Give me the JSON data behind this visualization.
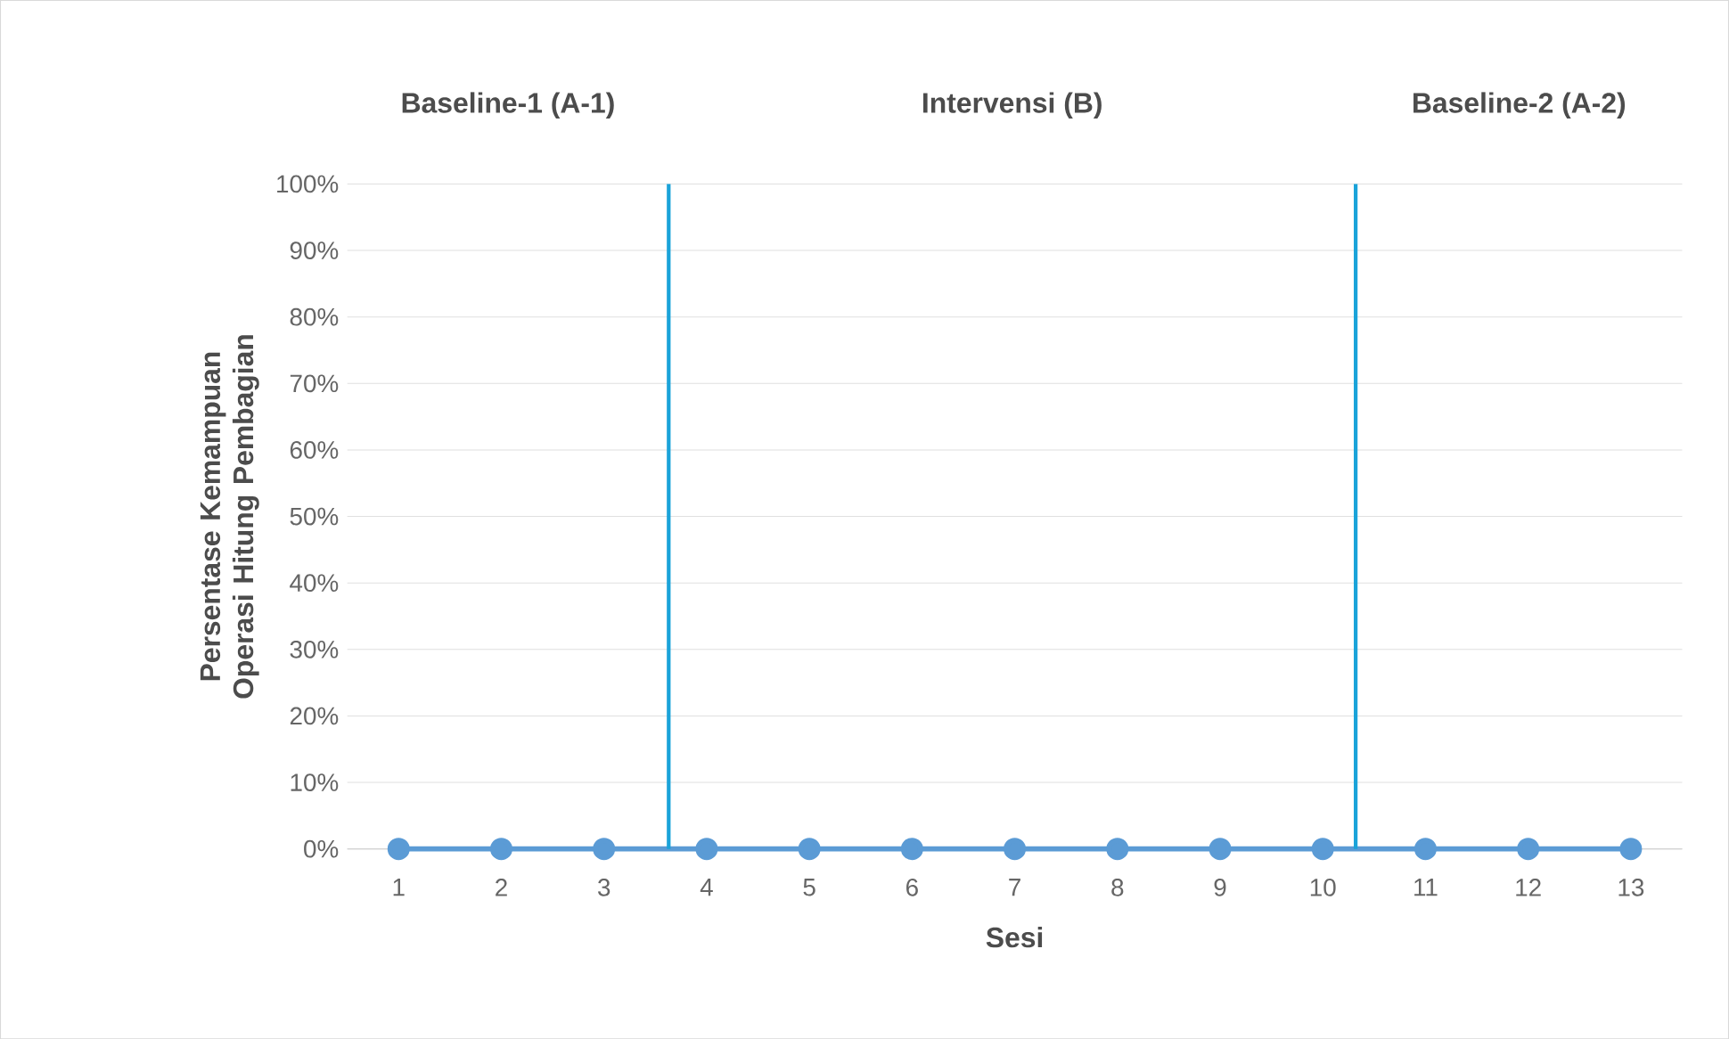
{
  "chart_data": {
    "type": "line",
    "xlabel": "Sesi",
    "ylabel": "Persentase Kemampuan Operasi Hitung Pembagian",
    "x": [
      1,
      2,
      3,
      4,
      5,
      6,
      7,
      8,
      9,
      10,
      11,
      12,
      13
    ],
    "xlim": [
      0.5,
      13.5
    ],
    "xticks": [
      1,
      2,
      3,
      4,
      5,
      6,
      7,
      8,
      9,
      10,
      11,
      12,
      13
    ],
    "ylim": [
      0,
      100
    ],
    "yticks": [
      {
        "value": 0,
        "label": "0%"
      },
      {
        "value": 10,
        "label": "10%"
      },
      {
        "value": 20,
        "label": "20%"
      },
      {
        "value": 30,
        "label": "30%"
      },
      {
        "value": 40,
        "label": "40%"
      },
      {
        "value": 50,
        "label": "50%"
      },
      {
        "value": 60,
        "label": "60%"
      },
      {
        "value": 70,
        "label": "70%"
      },
      {
        "value": 80,
        "label": "80%"
      },
      {
        "value": 90,
        "label": "90%"
      },
      {
        "value": 100,
        "label": "100%"
      }
    ],
    "series": [
      {
        "color": "#5b9bd5",
        "values": [
          0,
          0,
          0,
          0,
          0,
          0,
          0,
          0,
          0,
          0,
          0,
          0,
          0
        ]
      }
    ],
    "ref_lines": [
      {
        "axis": "x",
        "value": 3.63,
        "color": "#1aa3d9"
      },
      {
        "axis": "x",
        "value": 10.32,
        "color": "#1aa3d9"
      }
    ],
    "annotations": [
      "Baseline-1 (A-1)",
      "Intervensi (B)",
      "Baseline-2 (A-2)"
    ],
    "grid": "y",
    "marker": "circle",
    "line_style": "solid"
  }
}
